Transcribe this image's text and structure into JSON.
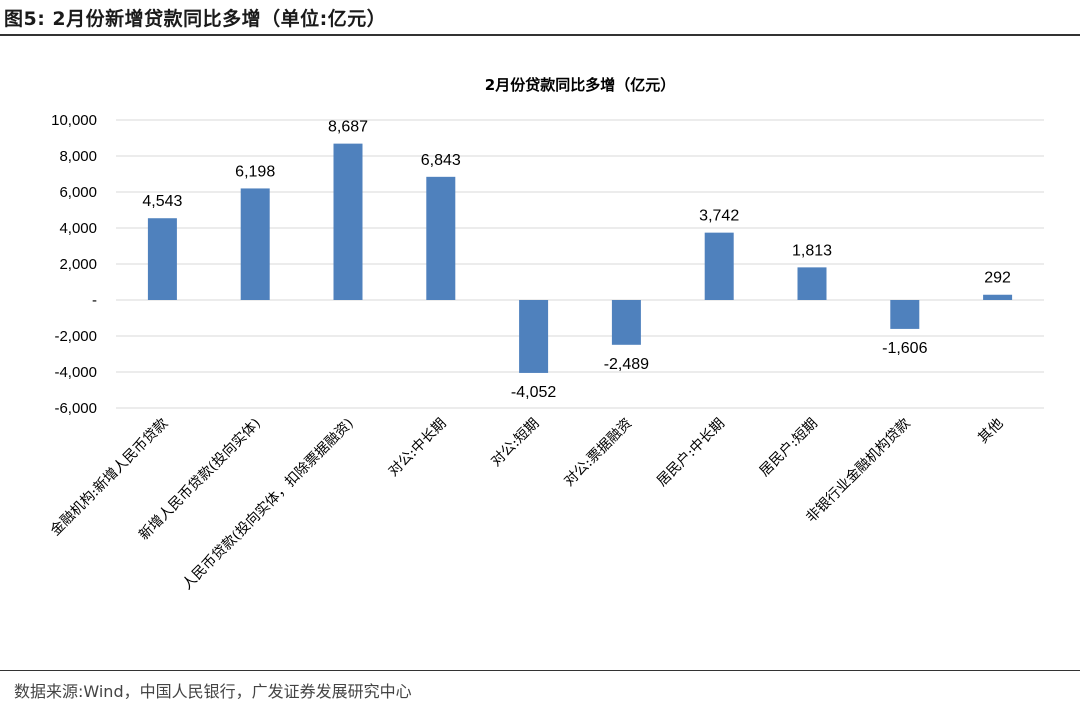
{
  "header": {
    "title": "图5: 2月份新增贷款同比多增（单位:亿元）"
  },
  "footer": {
    "source": "数据来源:Wind，中国人民银行，广发证券发展研究中心"
  },
  "colors": {
    "bar": "#4F81BD",
    "grid": "#D9D9D9",
    "rule": "#333333"
  },
  "chart_data": {
    "type": "bar",
    "title": "2月份贷款同比多增（亿元）",
    "categories": [
      "金融机构:新增人民币贷款",
      "新增人民币贷款(投向实体)",
      "人民币贷款(投向实体，扣除票据融资)",
      "对公:中长期",
      "对公:短期",
      "对公:票据融资",
      "居民户:中长期",
      "居民户:短期",
      "非银行业金融机构贷款",
      "其他"
    ],
    "values": [
      4543,
      6198,
      8687,
      6843,
      -4052,
      -2489,
      3742,
      1813,
      -1606,
      292
    ],
    "data_labels": [
      "4,543",
      "6,198",
      "8,687",
      "6,843",
      "-4,052",
      "-2,489",
      "3,742",
      "1,813",
      "-1,606",
      "292"
    ],
    "ylim": [
      -6000,
      10000
    ],
    "y_ticks": [
      10000,
      8000,
      6000,
      4000,
      2000,
      0,
      -2000,
      -4000,
      -6000
    ],
    "y_tick_labels": [
      "10,000",
      "8,000",
      "6,000",
      "4,000",
      "2,000",
      "-",
      "-2,000",
      "-4,000",
      "-6,000"
    ],
    "grid": true,
    "legend": "none"
  }
}
